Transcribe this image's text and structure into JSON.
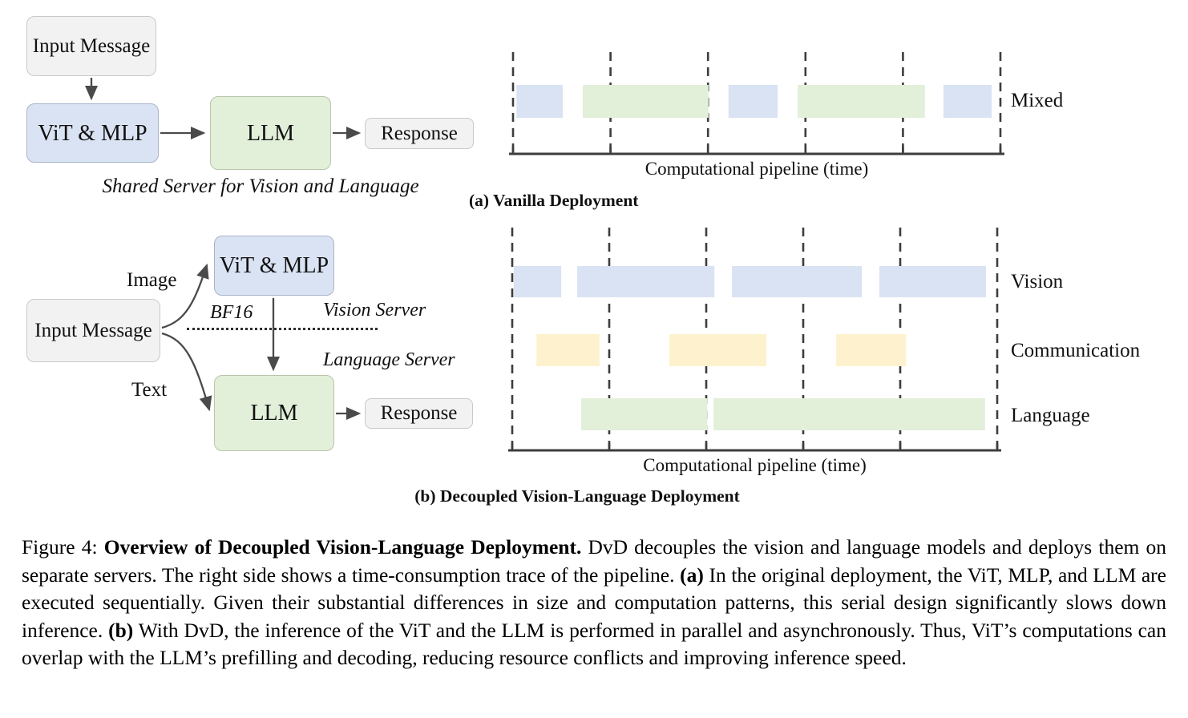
{
  "colors": {
    "vision": "#dae3f3",
    "language": "#e2efd9",
    "communication": "#fdf2cd",
    "box_gray": "#f2f2f2",
    "arrow": "#4a4a4a"
  },
  "panel_a": {
    "flow": {
      "input_label": "Input Message",
      "vit_label": "ViT & MLP",
      "llm_label": "LLM",
      "response_label": "Response",
      "server_caption": "Shared Server for Vision  and Language"
    }
  },
  "panel_b": {
    "flow": {
      "input_label": "Input Message",
      "vit_label": "ViT & MLP",
      "llm_label": "LLM",
      "response_label": "Response",
      "image_edge_label": "Image",
      "text_edge_label": "Text",
      "bf16_label": "BF16",
      "vision_server_label": "Vision Server",
      "language_server_label": "Language Server"
    }
  },
  "chart_data": [
    {
      "type": "timeline",
      "title": "(a) Vanilla Deployment",
      "xlabel": "Computational pipeline (time)",
      "gridlines": [
        0,
        0.2,
        0.4,
        0.6,
        0.8,
        1
      ],
      "rows": [
        {
          "label": "Mixed",
          "blocks": [
            {
              "start": 0.007,
              "end": 0.102,
              "kind": "vision"
            },
            {
              "start": 0.143,
              "end": 0.401,
              "kind": "language"
            },
            {
              "start": 0.442,
              "end": 0.543,
              "kind": "vision"
            },
            {
              "start": 0.584,
              "end": 0.845,
              "kind": "language"
            },
            {
              "start": 0.883,
              "end": 0.982,
              "kind": "vision"
            }
          ]
        }
      ]
    },
    {
      "type": "timeline",
      "title": "(b) Decoupled Vision-Language Deployment",
      "xlabel": "Computational pipeline (time)",
      "gridlines": [
        0,
        0.2,
        0.4,
        0.6,
        0.8,
        1
      ],
      "rows": [
        {
          "label": "Vision",
          "blocks": [
            {
              "start": 0.003,
              "end": 0.101,
              "kind": "vision"
            },
            {
              "start": 0.134,
              "end": 0.417,
              "kind": "vision"
            },
            {
              "start": 0.453,
              "end": 0.721,
              "kind": "vision"
            },
            {
              "start": 0.757,
              "end": 0.977,
              "kind": "vision"
            }
          ]
        },
        {
          "label": "Communication",
          "blocks": [
            {
              "start": 0.05,
              "end": 0.18,
              "kind": "communication"
            },
            {
              "start": 0.324,
              "end": 0.524,
              "kind": "communication"
            },
            {
              "start": 0.668,
              "end": 0.812,
              "kind": "communication"
            }
          ]
        },
        {
          "label": "Language",
          "blocks": [
            {
              "start": 0.142,
              "end": 0.402,
              "kind": "language"
            },
            {
              "start": 0.415,
              "end": 0.975,
              "kind": "language"
            }
          ]
        }
      ]
    }
  ],
  "figure_caption": {
    "segments": [
      {
        "text": "Figure 4: ",
        "bold": false
      },
      {
        "text": "Overview of Decoupled Vision-Language Deployment.",
        "bold": true
      },
      {
        "text": " DvD decouples the vision and language models and deploys them on separate servers.  The right side shows a time-consumption trace of the pipeline. ",
        "bold": false
      },
      {
        "text": "(a)",
        "bold": true
      },
      {
        "text": " In the original deployment, the ViT, MLP, and LLM are executed sequentially.  Given their substantial differences in size and computation patterns, this serial design significantly slows down inference. ",
        "bold": false
      },
      {
        "text": "(b)",
        "bold": true
      },
      {
        "text": " With DvD, the inference of the ViT and the LLM is performed in parallel and asynchronously.  Thus, ViT’s computations can overlap with the LLM’s prefilling and decoding, reducing resource conflicts and improving inference speed.",
        "bold": false
      }
    ]
  }
}
